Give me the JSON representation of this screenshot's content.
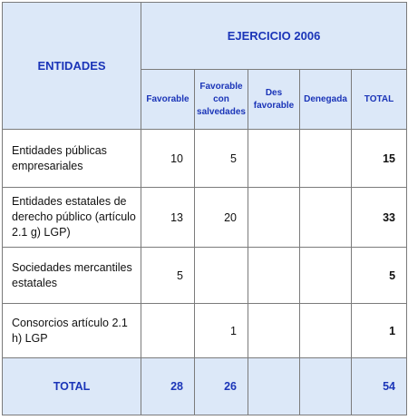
{
  "table": {
    "header": {
      "entidades": "ENTIDADES",
      "ejercicio": "EJERCICIO 2006",
      "columns": [
        "Favorable",
        "Favorable con salvedades",
        "Des favorable",
        "Denegada",
        "TOTAL"
      ]
    },
    "rows": [
      {
        "label": "Entidades públicas empresariales",
        "favorable": "10",
        "favorable_salvedades": "5",
        "desfavorable": "",
        "denegada": "",
        "total": "15"
      },
      {
        "label": "Entidades estatales de derecho público (artículo 2.1 g) LGP)",
        "favorable": "13",
        "favorable_salvedades": "20",
        "desfavorable": "",
        "denegada": "",
        "total": "33"
      },
      {
        "label": "Sociedades mercantiles estatales",
        "favorable": "5",
        "favorable_salvedades": "",
        "desfavorable": "",
        "denegada": "",
        "total": "5"
      },
      {
        "label": "Consorcios artículo 2.1 h) LGP",
        "favorable": "",
        "favorable_salvedades": "1",
        "desfavorable": "",
        "denegada": "",
        "total": "1"
      }
    ],
    "total_row": {
      "label": "TOTAL",
      "favorable": "28",
      "favorable_salvedades": "26",
      "desfavorable": "",
      "denegada": "",
      "total": "54"
    }
  }
}
